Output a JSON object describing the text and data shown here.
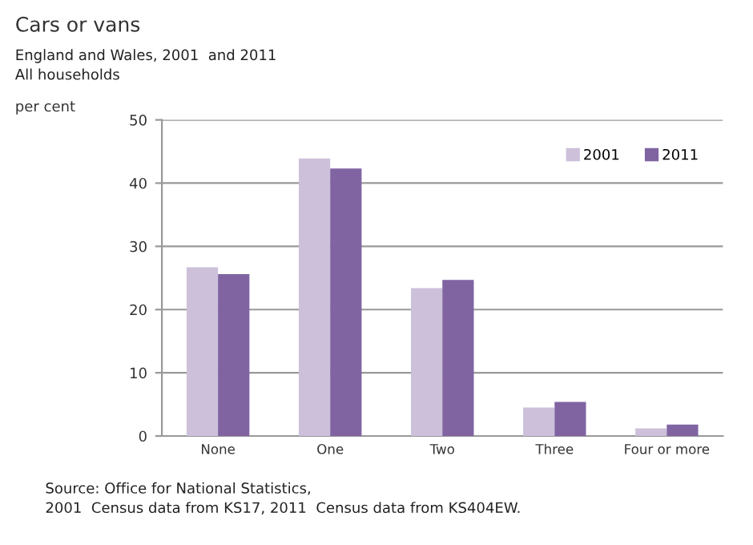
{
  "chart_data": {
    "type": "bar",
    "title": "Cars or vans",
    "subtitle": "England and Wales, 2001  and 2011\nAll households",
    "ylabel": "per cent",
    "categories": [
      "None",
      "One",
      "Two",
      "Three",
      "Four or more"
    ],
    "series": [
      {
        "name": "2001",
        "color": "#ccc0da",
        "values": [
          26.7,
          43.9,
          23.4,
          4.5,
          1.2
        ]
      },
      {
        "name": "2011",
        "color": "#8064a2",
        "values": [
          25.6,
          42.3,
          24.7,
          5.4,
          1.8
        ]
      }
    ],
    "ylim": [
      0,
      50
    ],
    "yticks": [
      0,
      10,
      20,
      30,
      40,
      50
    ],
    "grid": "y",
    "legend": "top right",
    "annotations": [
      "Source: Office for National Statistics,\n2001  Census data from KS17, 2011  Census data from KS404EW."
    ]
  }
}
